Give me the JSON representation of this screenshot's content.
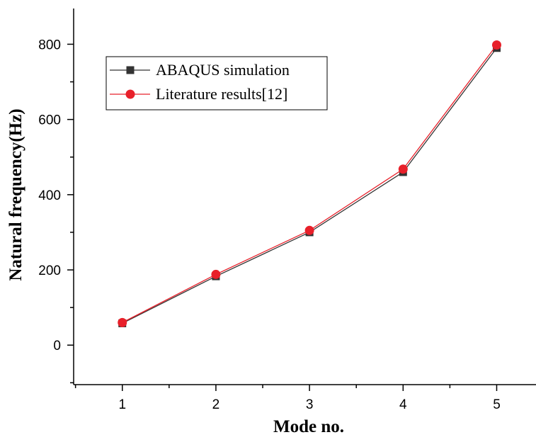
{
  "chart_data": {
    "type": "line",
    "xlabel": "Mode no.",
    "ylabel": "Natural frequency(Hz)",
    "x": [
      1,
      2,
      3,
      4,
      5
    ],
    "xlim": [
      0.48,
      5.42
    ],
    "ylim": [
      -105,
      895
    ],
    "xticks": [
      1,
      2,
      3,
      4,
      5
    ],
    "yticks": [
      0,
      200,
      400,
      600,
      800
    ],
    "grid": false,
    "legend_position": "top-left",
    "series": [
      {
        "name": "ABAQUS simulation",
        "values": [
          58,
          183,
          300,
          460,
          790
        ],
        "color": "#333333",
        "marker": "square"
      },
      {
        "name": "Literature results[12]",
        "values": [
          60,
          188,
          305,
          468,
          798
        ],
        "color": "#e8202a",
        "marker": "circle"
      }
    ]
  }
}
